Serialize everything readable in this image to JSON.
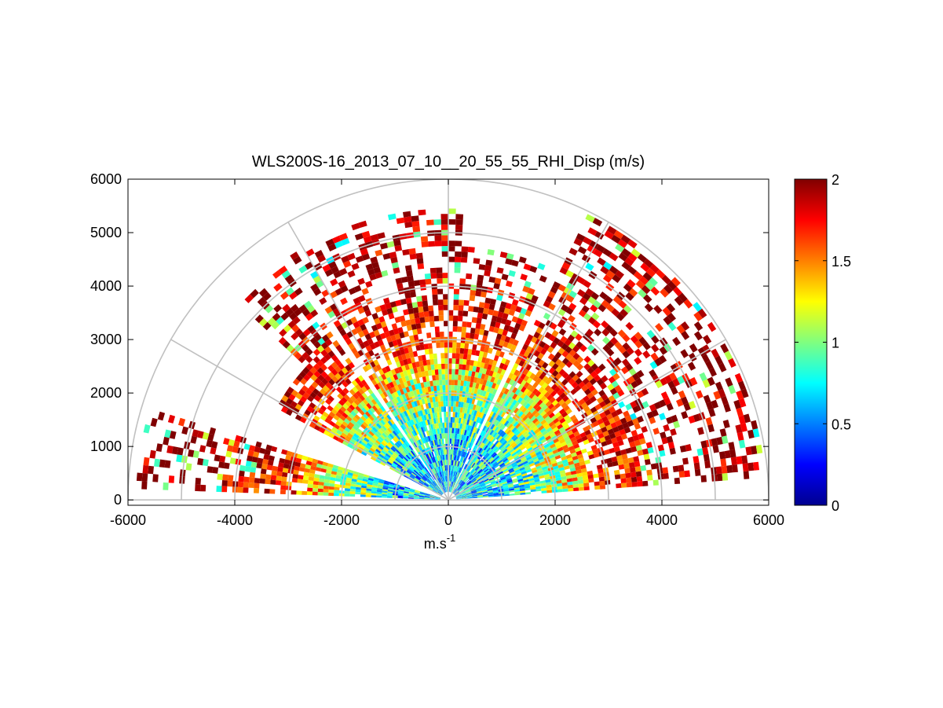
{
  "chart_data": {
    "type": "heatmap",
    "subtype": "polar-rhi-scan",
    "title": "WLS200S-16_2013_07_10__20_55_55_RHI_Disp (m/s)",
    "xlabel": "m.s",
    "xlabel_superscript": "-1",
    "ylabel": "",
    "xlim": [
      -6000,
      6000
    ],
    "ylim": [
      -100,
      6000
    ],
    "x_ticks": [
      -6000,
      -4000,
      -2000,
      0,
      2000,
      4000,
      6000
    ],
    "y_ticks": [
      0,
      1000,
      2000,
      3000,
      4000,
      5000,
      6000
    ],
    "range_rings_m": [
      1000,
      2000,
      3000,
      4000,
      5000,
      6000
    ],
    "spokes_deg": [
      0,
      30,
      60,
      90,
      120,
      150,
      180
    ],
    "colorbar": {
      "colormap": "jet",
      "min": 0,
      "max": 2,
      "ticks": [
        0,
        0.5,
        1,
        1.5,
        2
      ]
    },
    "scan": {
      "sectors": [
        {
          "from_deg": 4,
          "to_deg": 64,
          "max_range_m": 5900
        },
        {
          "from_deg": 66,
          "to_deg": 86,
          "max_range_m": 4700
        },
        {
          "from_deg": 87,
          "to_deg": 123,
          "max_range_m": 5400
        },
        {
          "from_deg": 125,
          "to_deg": 136,
          "max_range_m": 5300
        },
        {
          "from_deg": 137,
          "to_deg": 151,
          "max_range_m": 3600
        },
        {
          "from_deg": 163,
          "to_deg": 177,
          "max_range_m": 5800
        }
      ],
      "range_gate_m": 100,
      "azimuth_step_deg": 1.5,
      "value_vs_range": [
        {
          "range_m": 0,
          "disp_m_s": 0.7
        },
        {
          "range_m": 1000,
          "disp_m_s": 0.7
        },
        {
          "range_m": 2000,
          "disp_m_s": 1.1
        },
        {
          "range_m": 3000,
          "disp_m_s": 1.7
        },
        {
          "range_m": 4000,
          "disp_m_s": 1.9
        },
        {
          "range_m": 6000,
          "disp_m_s": 2.0
        }
      ]
    }
  }
}
